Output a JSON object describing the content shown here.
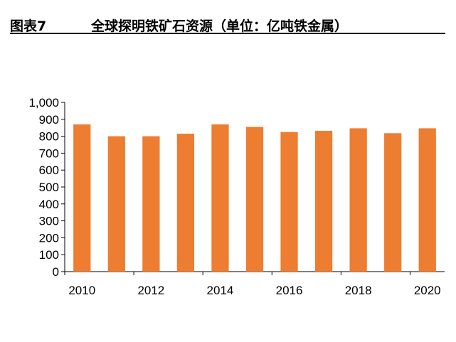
{
  "figure": {
    "label": "图表7",
    "title": "全球探明铁矿石资源（单位：亿吨铁金属）"
  },
  "colors": {
    "bar": "#ED7D31",
    "axis": "#000000"
  },
  "chart_data": {
    "type": "bar",
    "title": "全球探明铁矿石资源（单位：亿吨铁金属）",
    "xlabel": "",
    "ylabel": "",
    "categories": [
      "2010",
      "2011",
      "2012",
      "2013",
      "2014",
      "2015",
      "2016",
      "2017",
      "2018",
      "2019",
      "2020"
    ],
    "values": [
      870,
      800,
      800,
      815,
      870,
      855,
      825,
      832,
      847,
      818,
      847
    ],
    "x_tick_labels": [
      "2010",
      "2012",
      "2014",
      "2016",
      "2018",
      "2020"
    ],
    "y_tick_labels": [
      "0",
      "100",
      "200",
      "300",
      "400",
      "500",
      "600",
      "700",
      "800",
      "900",
      "1,000"
    ],
    "ylim": [
      0,
      1000
    ],
    "grid": false,
    "legend": "none"
  }
}
